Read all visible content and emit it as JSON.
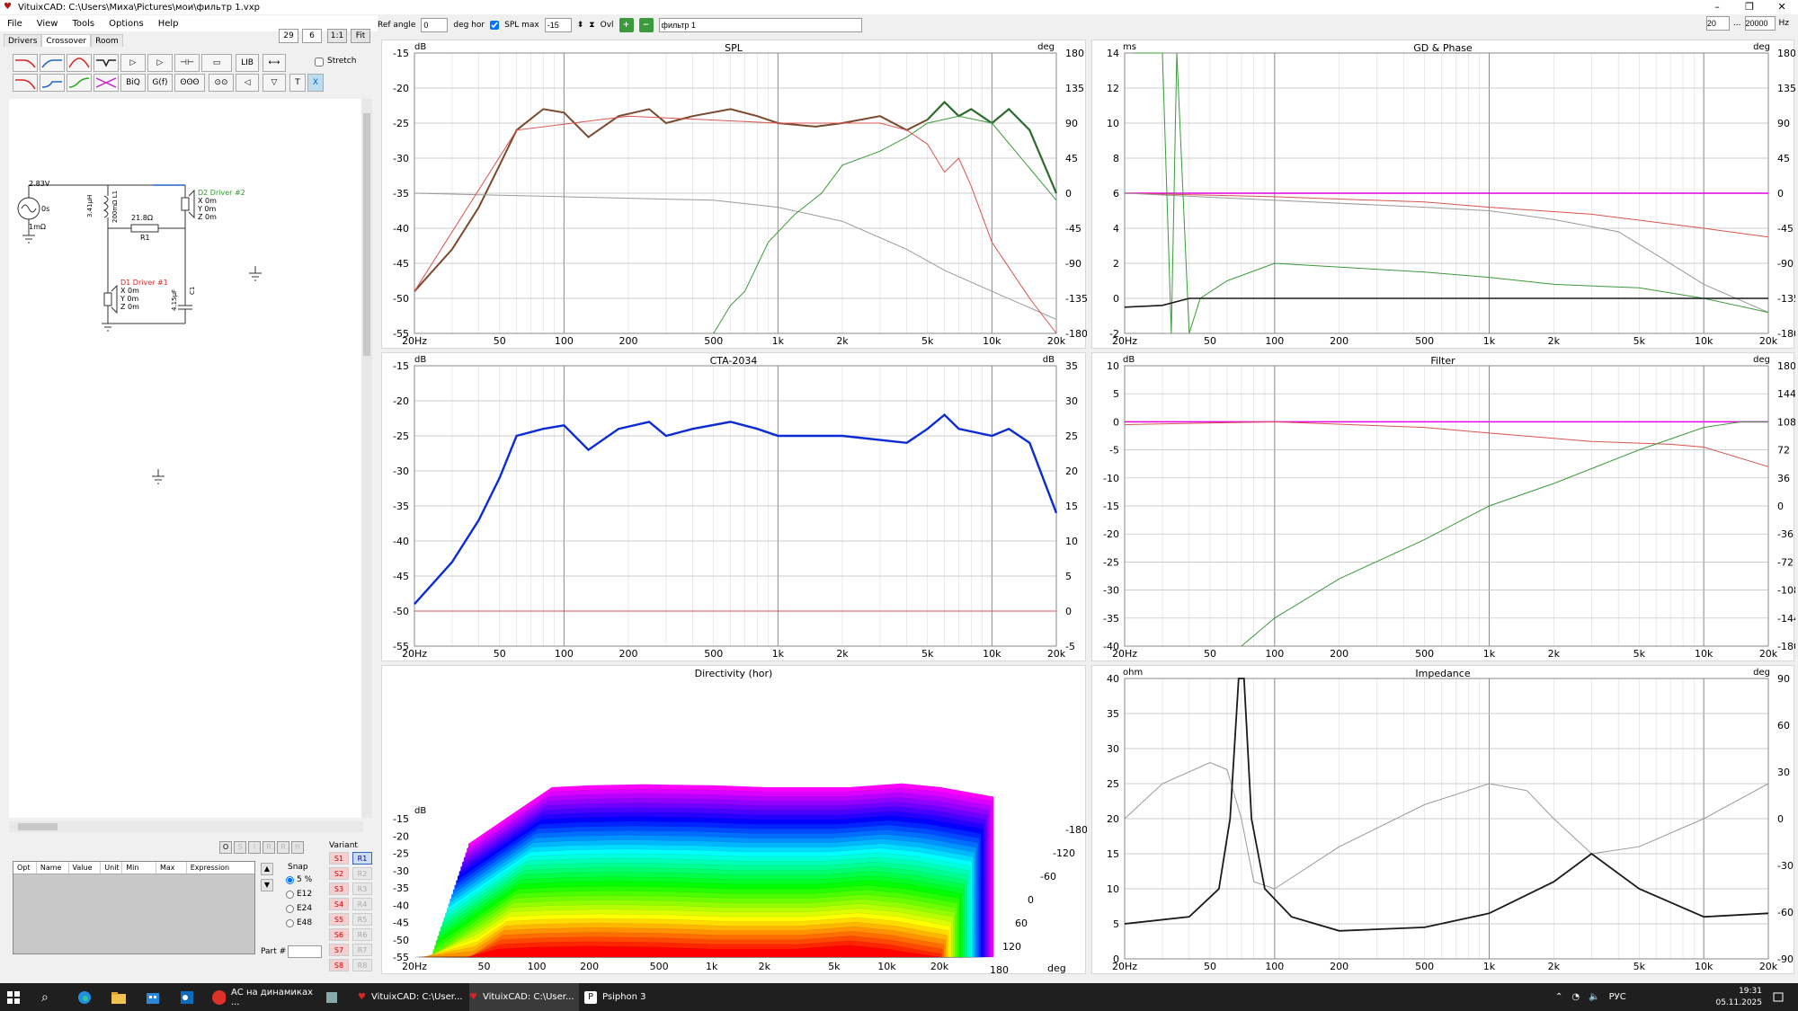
{
  "window": {
    "title": "VituixCAD: C:\\Users\\Миха\\Pictures\\мои\\фильтр 1.vxp",
    "minimize": "–",
    "maximize": "❐",
    "close": "✕"
  },
  "menu": [
    "File",
    "View",
    "Tools",
    "Options",
    "Help"
  ],
  "toolbar": {
    "v1": "29",
    "v2": "6",
    "b1": "1:1",
    "b2": "Fit"
  },
  "tabs": [
    "Drivers",
    "Crossover",
    "Room"
  ],
  "active_tab": "Crossover",
  "palette": {
    "row1": [
      "",
      "",
      "",
      "",
      "▷",
      "▷",
      "⊣⊢",
      "▭",
      "LIB",
      "⟷"
    ],
    "row2": [
      "",
      "",
      "",
      "",
      "BiQ",
      "G(f)",
      "ʘʘʘ",
      "⊙⊙",
      "◁",
      "▽",
      "T",
      "X"
    ],
    "stretch": "Stretch"
  },
  "schematic": {
    "source": [
      "2.83V",
      "0s",
      "1mΩ"
    ],
    "L1": "3.41µH",
    "L1b": "200mΩ L1",
    "R1val": "21.8Ω",
    "R1": "R1",
    "C1": "4.15µF",
    "C1b": "C1",
    "d2": {
      "name": "D2 Driver #2",
      "x": "X 0m",
      "y": "Y 0m",
      "z": "Z 0m"
    },
    "d1": {
      "name": "D1 Driver #1",
      "x": "X 0m",
      "y": "Y 0m",
      "z": "Z 0m"
    }
  },
  "params": {
    "headers": [
      "Opt",
      "Name",
      "Value",
      "Unit",
      "Min",
      "Max",
      "Expression"
    ]
  },
  "nav_btns": [
    "O",
    "S",
    "I",
    "R",
    "R",
    "H"
  ],
  "snap": {
    "title": "Snap",
    "options": [
      "5 %",
      "E12",
      "E24",
      "E48"
    ],
    "part": "Part #"
  },
  "variant": {
    "title": "Variant",
    "s": [
      "S1",
      "S2",
      "S3",
      "S4",
      "S5",
      "S6",
      "S7",
      "S8"
    ],
    "r": [
      "R1",
      "R2",
      "R3",
      "R4",
      "R5",
      "R6",
      "R7",
      "R8"
    ]
  },
  "top": {
    "ref_angle_label": "Ref angle",
    "ref_angle": "0",
    "deg_hor": "deg hor",
    "spl_max_label": "SPL max",
    "spl_max": "-15",
    "ovl": "Ovl",
    "filter_name": "фильтр 1",
    "f_low": "20",
    "f_high": "20000",
    "hz": "Hz",
    "dots": "..."
  },
  "x_ticks": [
    "20Hz",
    "50",
    "100",
    "200",
    "500",
    "1k",
    "2k",
    "5k",
    "10k",
    "20k"
  ],
  "spl": {
    "title": "SPL",
    "yl": "dB",
    "yr": "deg",
    "yticks": [
      "-15",
      "-20",
      "-25",
      "-30",
      "-35",
      "-40",
      "-45",
      "-50",
      "-55"
    ],
    "rticks": [
      "180",
      "135",
      "90",
      "45",
      "0",
      "-45",
      "-90",
      "-135",
      "-180"
    ]
  },
  "cta": {
    "title": "CTA-2034",
    "yl": "dB",
    "yr": "dB",
    "yticks": [
      "-15",
      "-20",
      "-25",
      "-30",
      "-35",
      "-40",
      "-45",
      "-50",
      "-55"
    ],
    "rticks": [
      "35",
      "30",
      "25",
      "20",
      "15",
      "10",
      "5",
      "0",
      "-5"
    ]
  },
  "dir": {
    "title": "Directivity (hor)",
    "yl": "dB",
    "yticks": [
      "-15",
      "-20",
      "-25",
      "-30",
      "-35",
      "-40",
      "-45",
      "-50",
      "-55"
    ],
    "x_ticks": [
      "20Hz",
      "50",
      "100",
      "200",
      "500",
      "1k",
      "2k",
      "5k",
      "10k",
      "20k"
    ],
    "angles": [
      "-180",
      "-120",
      "-60",
      "0",
      "60",
      "120",
      "180"
    ],
    "deg": "deg"
  },
  "gd": {
    "title": "GD & Phase",
    "yl": "ms",
    "yr": "deg",
    "yticks": [
      "14",
      "12",
      "10",
      "8",
      "6",
      "4",
      "2",
      "0",
      "-2"
    ],
    "rticks": [
      "180",
      "135",
      "90",
      "45",
      "0",
      "-45",
      "-90",
      "-135",
      "-180"
    ]
  },
  "filter": {
    "title": "Filter",
    "yl": "dB",
    "yr": "deg",
    "yticks": [
      "10",
      "5",
      "0",
      "-5",
      "-10",
      "-15",
      "-20",
      "-25",
      "-30",
      "-35",
      "-40"
    ],
    "rticks": [
      "180",
      "144",
      "108",
      "72",
      "36",
      "0",
      "-36",
      "-72",
      "-108",
      "-144",
      "-180"
    ]
  },
  "imp": {
    "title": "Impedance",
    "yl": "ohm",
    "yr": "deg",
    "yticks": [
      "40",
      "35",
      "30",
      "25",
      "20",
      "15",
      "10",
      "5",
      "0"
    ],
    "rticks": [
      "90",
      "60",
      "30",
      "0",
      "-30",
      "-60",
      "-90"
    ]
  },
  "colors": {
    "black": "#1a1a1a",
    "blue": "#0b2bd6",
    "red": "#d9534f",
    "green": "#3a9b3a",
    "magenta": "#e000e0",
    "gray": "#999999",
    "brown": "#7b4a2e",
    "dkgreen": "#2d6a2d"
  },
  "taskbar": {
    "items": [
      "АС на динамиках ...",
      "VituixCAD: C:\\User...",
      "VituixCAD: C:\\User...",
      "Psiphon 3"
    ],
    "lang": "РУС",
    "time": "19:31",
    "date": "05.11.2025"
  }
}
